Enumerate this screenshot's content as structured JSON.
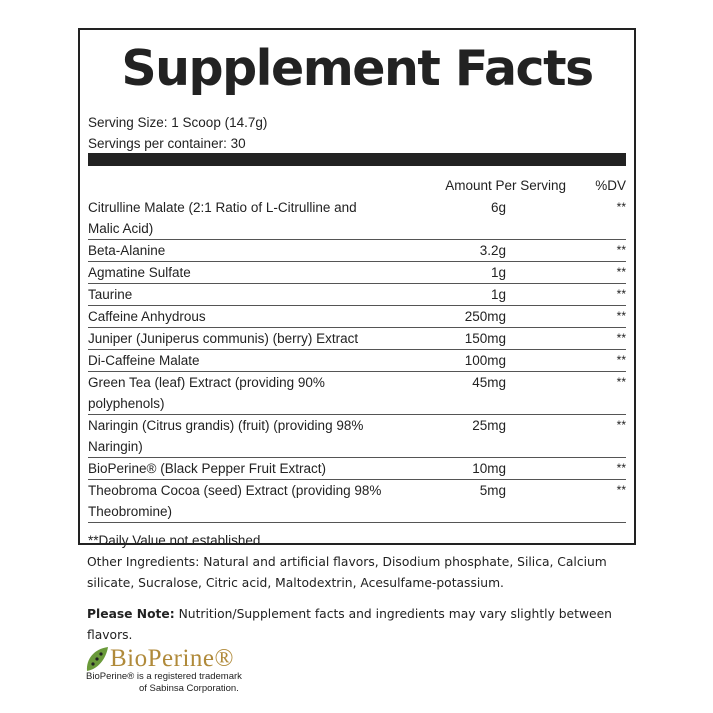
{
  "title": "Supplement Facts",
  "serving_size": "Serving Size: 1 Scoop (14.7g)",
  "servings_per_container": "Servings per container: 30",
  "headers": {
    "amount": "Amount Per Serving",
    "dv": "%DV"
  },
  "ingredients": [
    {
      "name": "Citrulline Malate (2:1 Ratio of L-Citrulline and Malic Acid)",
      "amount": "6g",
      "dv": "**"
    },
    {
      "name": "Beta-Alanine",
      "amount": "3.2g",
      "dv": "**"
    },
    {
      "name": "Agmatine Sulfate",
      "amount": "1g",
      "dv": "**"
    },
    {
      "name": "Taurine",
      "amount": "1g",
      "dv": "**"
    },
    {
      "name": "Caffeine Anhydrous",
      "amount": "250mg",
      "dv": "**"
    },
    {
      "name": "Juniper (Juniperus communis) (berry) Extract",
      "amount": "150mg",
      "dv": "**"
    },
    {
      "name": "Di-Caffeine Malate",
      "amount": "100mg",
      "dv": "**"
    },
    {
      "name": "Green Tea (leaf) Extract (providing 90% polyphenols)",
      "amount": "45mg",
      "dv": "**"
    },
    {
      "name": "Naringin (Citrus grandis) (fruit) (providing 98% Naringin)",
      "amount": "25mg",
      "dv": "**"
    },
    {
      "name": "BioPerine® (Black Pepper Fruit Extract)",
      "amount": "10mg",
      "dv": "**"
    },
    {
      "name": "Theobroma Cocoa (seed) Extract (providing 98% Theobromine)",
      "amount": "5mg",
      "dv": "**"
    }
  ],
  "footnote": "**Daily Value not established",
  "other_ingredients": "Other Ingredients: Natural and artificial flavors, Disodium phosphate, Silica, Calcium silicate, Sucralose, Citric acid, Maltodextrin, Acesulfame-potassium.",
  "note_label": "Please Note:",
  "note_text": " Nutrition/Supplement facts and ingredients may vary slightly between flavors.",
  "logo": {
    "word": "BioPerine®",
    "trademark_line1": "BioPerine® is a registered trademark",
    "trademark_line2": "of Sabinsa Corporation.",
    "color": "#b08a3a"
  }
}
